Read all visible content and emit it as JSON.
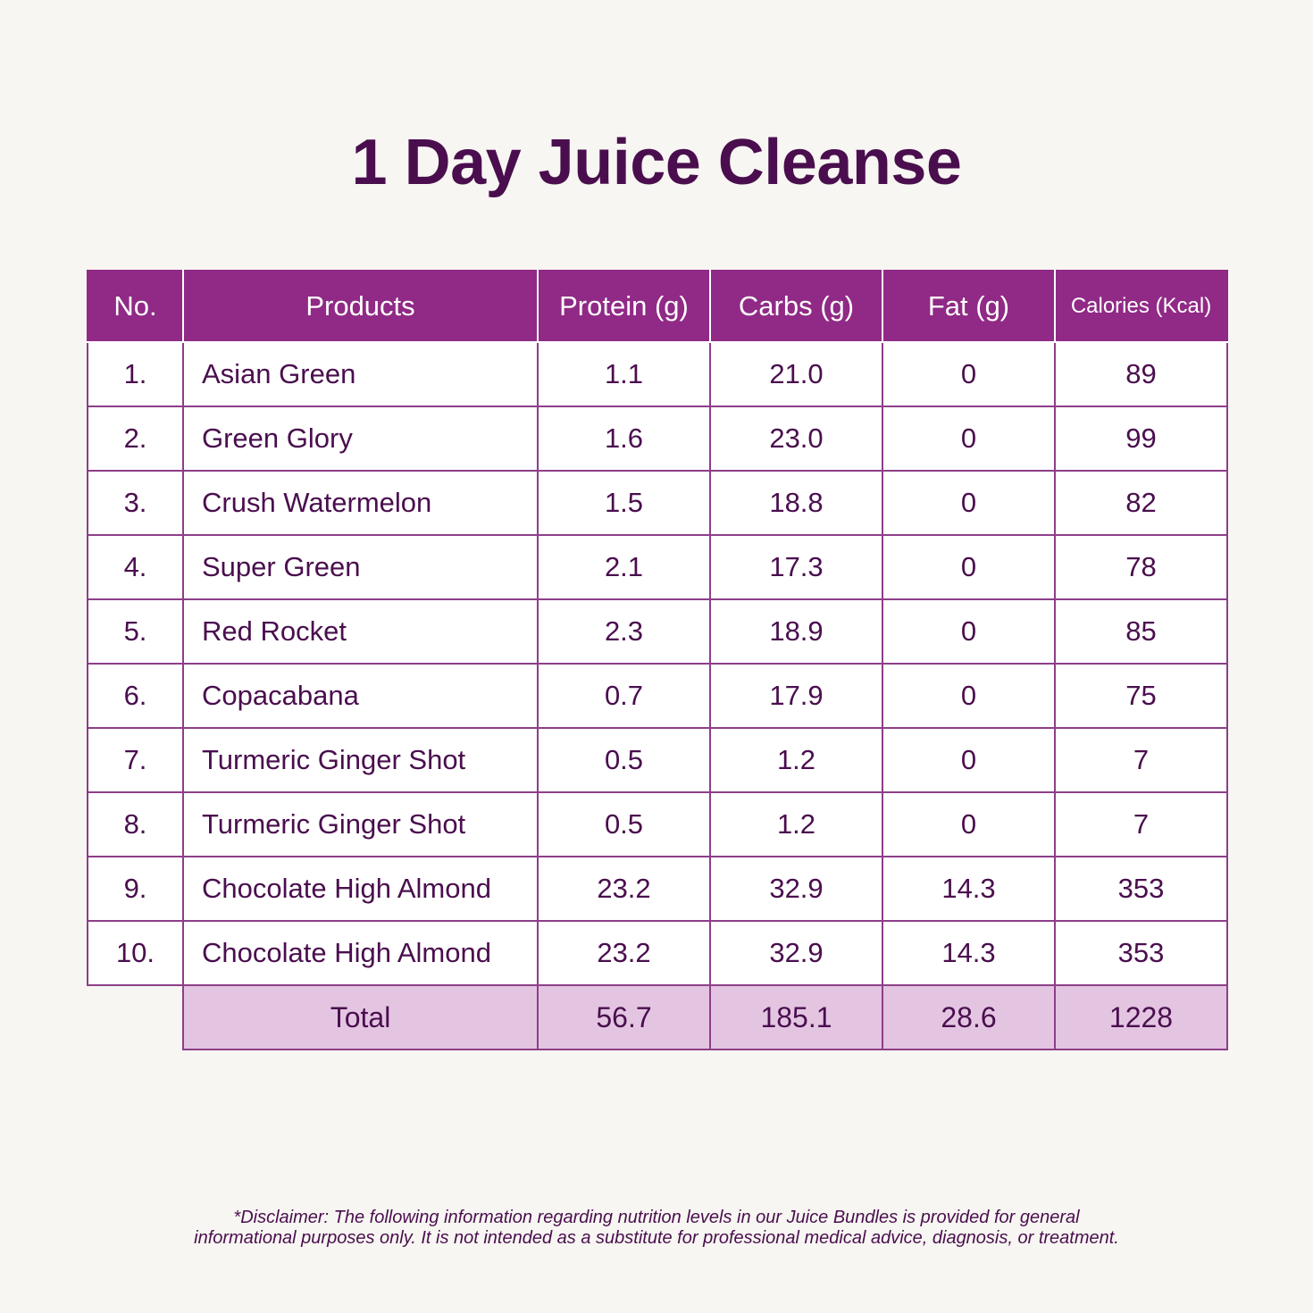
{
  "title": "1 Day Juice Cleanse",
  "table": {
    "headers": {
      "no": "No.",
      "products": "Products",
      "protein": "Protein (g)",
      "carbs": "Carbs (g)",
      "fat": "Fat (g)",
      "calories": "Calories (Kcal)"
    },
    "rows": [
      {
        "no": "1.",
        "product": "Asian Green",
        "protein": "1.1",
        "carbs": "21.0",
        "fat": "0",
        "calories": "89"
      },
      {
        "no": "2.",
        "product": "Green Glory",
        "protein": "1.6",
        "carbs": "23.0",
        "fat": "0",
        "calories": "99"
      },
      {
        "no": "3.",
        "product": "Crush Watermelon",
        "protein": "1.5",
        "carbs": "18.8",
        "fat": "0",
        "calories": "82"
      },
      {
        "no": "4.",
        "product": "Super Green",
        "protein": "2.1",
        "carbs": "17.3",
        "fat": "0",
        "calories": "78"
      },
      {
        "no": "5.",
        "product": "Red Rocket",
        "protein": "2.3",
        "carbs": "18.9",
        "fat": "0",
        "calories": "85"
      },
      {
        "no": "6.",
        "product": "Copacabana",
        "protein": "0.7",
        "carbs": "17.9",
        "fat": "0",
        "calories": "75"
      },
      {
        "no": "7.",
        "product": "Turmeric Ginger Shot",
        "protein": "0.5",
        "carbs": "1.2",
        "fat": "0",
        "calories": "7"
      },
      {
        "no": "8.",
        "product": "Turmeric Ginger Shot",
        "protein": "0.5",
        "carbs": "1.2",
        "fat": "0",
        "calories": "7"
      },
      {
        "no": "9.",
        "product": "Chocolate High Almond",
        "protein": "23.2",
        "carbs": "32.9",
        "fat": "14.3",
        "calories": "353"
      },
      {
        "no": "10.",
        "product": "Chocolate High Almond",
        "protein": "23.2",
        "carbs": "32.9",
        "fat": "14.3",
        "calories": "353"
      }
    ],
    "total": {
      "label": "Total",
      "protein": "56.7",
      "carbs": "185.1",
      "fat": "28.6",
      "calories": "1228"
    }
  },
  "disclaimer": {
    "line1": "*Disclaimer: The following information regarding nutrition levels in our Juice Bundles is provided for general",
    "line2": "informational purposes only. It is not intended as a substitute for professional medical advice, diagnosis, or treatment."
  },
  "colors": {
    "background": "#f7f6f2",
    "header_purple": "#902a86",
    "text_purple": "#4a0e4e",
    "border_purple": "#8d3e89",
    "total_row": "#e3c5e1"
  }
}
